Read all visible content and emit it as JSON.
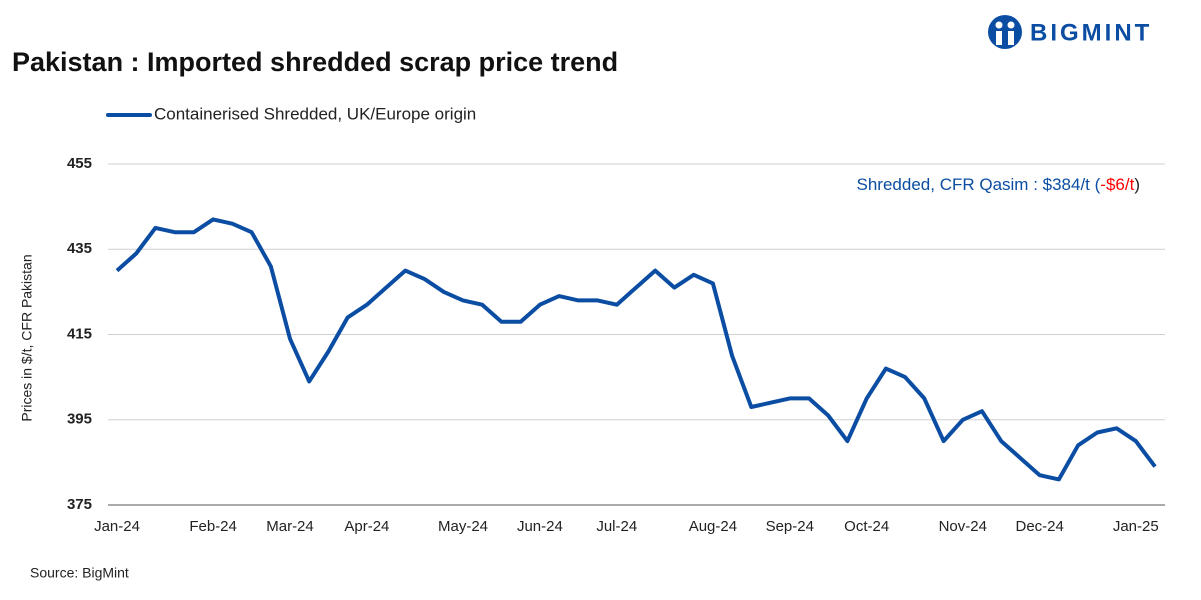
{
  "logo": "BIGMINT",
  "chart_data": {
    "type": "line",
    "title": "Pakistan : Imported shredded scrap price trend",
    "y_label": "Prices in $/t, CFR Pakistan",
    "source": "Source: BigMint",
    "annotation": [
      {
        "text": "Shredded, CFR Qasim : $384/t (",
        "color": "#0b4da2"
      },
      {
        "text": "-$6/t",
        "color": "#ff0000"
      },
      {
        "text": ")",
        "color": "#222222"
      }
    ],
    "categories": [
      "Jan-24",
      null,
      null,
      null,
      null,
      "Feb-24",
      null,
      null,
      null,
      "Mar-24",
      null,
      null,
      null,
      "Apr-24",
      null,
      null,
      null,
      null,
      "May-24",
      null,
      null,
      null,
      "Jun-24",
      null,
      null,
      null,
      "Jul-24",
      null,
      null,
      null,
      null,
      "Aug-24",
      null,
      null,
      null,
      "Sep-24",
      null,
      null,
      null,
      "Oct-24",
      null,
      null,
      null,
      null,
      "Nov-24",
      null,
      null,
      null,
      "Dec-24",
      null,
      null,
      null,
      null,
      "Jan-25",
      null
    ],
    "series": [
      {
        "name": "Containerised Shredded, UK/Europe origin",
        "color": "#0b4da2",
        "values": [
          430,
          434,
          440,
          439,
          439,
          442,
          441,
          439,
          431,
          414,
          404,
          411,
          419,
          422,
          426,
          430,
          428,
          425,
          423,
          422,
          418,
          418,
          422,
          424,
          423,
          423,
          422,
          426,
          430,
          426,
          429,
          427,
          410,
          398,
          399,
          400,
          400,
          396,
          390,
          400,
          407,
          405,
          400,
          390,
          395,
          397,
          390,
          386,
          382,
          381,
          389,
          392,
          393,
          390,
          384
        ]
      }
    ],
    "ylim": [
      375,
      455
    ],
    "yticks": [
      375,
      395,
      415,
      435,
      455
    ],
    "grid": true
  }
}
